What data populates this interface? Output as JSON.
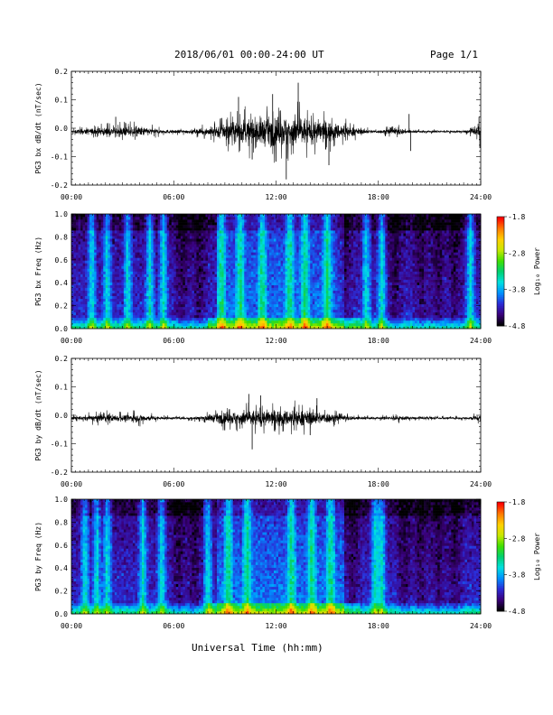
{
  "header": {
    "title": "2018/06/01  00:00-24:00 UT",
    "page_label": "Page 1/1"
  },
  "footer": {
    "xlabel": "Universal Time (hh:mm)"
  },
  "chart_data": [
    {
      "type": "line",
      "ylabel": "PG3 bx dB/dt (nT/sec)",
      "xlabel": "",
      "x_ticks": [
        "00:00",
        "06:00",
        "12:00",
        "18:00",
        "24:00"
      ],
      "xlim": [
        0,
        24
      ],
      "ylim": [
        -0.2,
        0.2
      ],
      "y_ticks": [
        "-0.2",
        "-0.1",
        "0.0",
        "0.1",
        "0.2"
      ],
      "baseline": -0.012,
      "envelope_hours": [
        0,
        1,
        2,
        3,
        4,
        5,
        6,
        7,
        8,
        9,
        10,
        11,
        12,
        13,
        14,
        15,
        16,
        17,
        18,
        19,
        20,
        21,
        22,
        23,
        24
      ],
      "envelope_amplitude": [
        0.012,
        0.025,
        0.03,
        0.035,
        0.04,
        0.02,
        0.012,
        0.015,
        0.03,
        0.065,
        0.09,
        0.11,
        0.11,
        0.13,
        0.1,
        0.08,
        0.05,
        0.02,
        0.01,
        0.03,
        0.01,
        0.008,
        0.008,
        0.008,
        0.04
      ],
      "peaks": [
        {
          "x": 9.8,
          "y": 0.11
        },
        {
          "x": 11.8,
          "y": 0.12
        },
        {
          "x": 13.3,
          "y": 0.16
        },
        {
          "x": 12.6,
          "y": -0.18
        },
        {
          "x": 15.1,
          "y": -0.13
        },
        {
          "x": 10.6,
          "y": -0.11
        },
        {
          "x": 19.8,
          "y": 0.05
        },
        {
          "x": 19.9,
          "y": -0.08
        },
        {
          "x": 2.6,
          "y": 0.04
        },
        {
          "x": 23.9,
          "y": 0.04
        },
        {
          "x": 23.95,
          "y": -0.07
        }
      ]
    },
    {
      "type": "heatmap",
      "ylabel": "PG3 bx Freq (Hz)",
      "xlabel": "",
      "x_ticks": [
        "00:00",
        "06:00",
        "12:00",
        "18:00",
        "24:00"
      ],
      "xlim": [
        0,
        24
      ],
      "ylim": [
        0.0,
        1.0
      ],
      "y_ticks": [
        "0.0",
        "0.2",
        "0.4",
        "0.6",
        "0.8",
        "1.0"
      ],
      "colorbar": {
        "label": "Log₁₀ Power",
        "ticks": [
          "-1.8",
          "-2.8",
          "-3.8",
          "-4.8"
        ],
        "range": [
          -4.8,
          -1.8
        ],
        "colors": [
          "#000000",
          "#3a007a",
          "#2b2bd6",
          "#0090ff",
          "#00e0e0",
          "#00d070",
          "#40e000",
          "#c8e800",
          "#ffd000",
          "#ff7a00",
          "#ff0000"
        ]
      },
      "bright_bands_hours": [
        1.2,
        2.1,
        3.3,
        4.6,
        5.4,
        8.8,
        9.9,
        11.2,
        12.8,
        13.7,
        15.0,
        17.3,
        18.2,
        23.4
      ],
      "quiet_hours": [
        6.5,
        7.5,
        16.0,
        19.0,
        20.5,
        21.5,
        22.5
      ]
    },
    {
      "type": "line",
      "ylabel": "PG3 by dB/dt (nT/sec)",
      "xlabel": "",
      "x_ticks": [
        "00:00",
        "06:00",
        "12:00",
        "18:00",
        "24:00"
      ],
      "xlim": [
        0,
        24
      ],
      "ylim": [
        -0.2,
        0.2
      ],
      "y_ticks": [
        "-0.2",
        "-0.1",
        "0.0",
        "0.1",
        "0.2"
      ],
      "baseline": -0.01,
      "envelope_hours": [
        0,
        1,
        2,
        3,
        4,
        5,
        6,
        7,
        8,
        9,
        10,
        11,
        12,
        13,
        14,
        15,
        16,
        17,
        18,
        19,
        20,
        21,
        22,
        23,
        24
      ],
      "envelope_amplitude": [
        0.012,
        0.022,
        0.03,
        0.025,
        0.03,
        0.015,
        0.008,
        0.01,
        0.025,
        0.045,
        0.06,
        0.065,
        0.06,
        0.065,
        0.055,
        0.04,
        0.02,
        0.012,
        0.008,
        0.02,
        0.01,
        0.008,
        0.008,
        0.008,
        0.025
      ],
      "peaks": [
        {
          "x": 10.4,
          "y": 0.075
        },
        {
          "x": 11.1,
          "y": 0.07
        },
        {
          "x": 14.4,
          "y": 0.06
        },
        {
          "x": 10.6,
          "y": -0.12
        },
        {
          "x": 14.0,
          "y": -0.07
        }
      ]
    },
    {
      "type": "heatmap",
      "ylabel": "PG3 by Freq (Hz)",
      "xlabel": "",
      "x_ticks": [
        "00:00",
        "06:00",
        "12:00",
        "18:00",
        "24:00"
      ],
      "xlim": [
        0,
        24
      ],
      "ylim": [
        0.0,
        1.0
      ],
      "y_ticks": [
        "0.0",
        "0.2",
        "0.4",
        "0.6",
        "0.8",
        "1.0"
      ],
      "colorbar": {
        "label": "Log₁₀ Power",
        "ticks": [
          "-1.8",
          "-2.8",
          "-3.8",
          "-4.8"
        ],
        "range": [
          -4.8,
          -1.8
        ],
        "colors": [
          "#000000",
          "#3a007a",
          "#2b2bd6",
          "#0090ff",
          "#00e0e0",
          "#00d070",
          "#40e000",
          "#c8e800",
          "#ffd000",
          "#ff7a00",
          "#ff0000"
        ]
      },
      "bright_bands_hours": [
        0.8,
        1.5,
        2.1,
        4.2,
        5.3,
        8.0,
        9.2,
        10.3,
        12.9,
        14.1,
        15.2,
        17.8,
        18.2
      ],
      "quiet_hours": [
        6.3,
        7.2,
        16.5,
        19.5,
        20.5,
        21.5,
        22.5
      ]
    }
  ]
}
